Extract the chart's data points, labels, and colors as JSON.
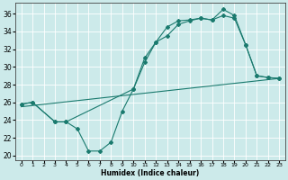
{
  "xlabel": "Humidex (Indice chaleur)",
  "xlim": [
    -0.5,
    23.5
  ],
  "ylim": [
    19.5,
    37.2
  ],
  "yticks": [
    20,
    22,
    24,
    26,
    28,
    30,
    32,
    34,
    36
  ],
  "xticks": [
    0,
    1,
    2,
    3,
    4,
    5,
    6,
    7,
    8,
    9,
    10,
    11,
    12,
    13,
    14,
    15,
    16,
    17,
    18,
    19,
    20,
    21,
    22,
    23
  ],
  "background_color": "#cceaea",
  "grid_color": "#ffffff",
  "line_color": "#1a7a6e",
  "line1_x": [
    0,
    1,
    3,
    4,
    5,
    6,
    7,
    8,
    9,
    10,
    11,
    12,
    13,
    14,
    15,
    16,
    17,
    18,
    19,
    20,
    21,
    22,
    23
  ],
  "line1_y": [
    25.8,
    26.0,
    23.8,
    23.8,
    23.0,
    20.5,
    20.5,
    21.5,
    25.0,
    27.5,
    31.0,
    32.8,
    34.5,
    35.2,
    35.3,
    35.5,
    35.3,
    36.5,
    35.8,
    32.5,
    29.0,
    28.8,
    28.7
  ],
  "line2_x": [
    0,
    1,
    3,
    4,
    10,
    11,
    12,
    13,
    14,
    15,
    16,
    17,
    18,
    19,
    20,
    21,
    22,
    23
  ],
  "line2_y": [
    25.8,
    26.0,
    23.8,
    23.8,
    27.5,
    30.5,
    32.8,
    33.5,
    34.8,
    35.2,
    35.5,
    35.3,
    35.8,
    35.5,
    32.5,
    29.0,
    28.8,
    28.7
  ],
  "line3_x": [
    0,
    23
  ],
  "line3_y": [
    25.5,
    28.7
  ]
}
